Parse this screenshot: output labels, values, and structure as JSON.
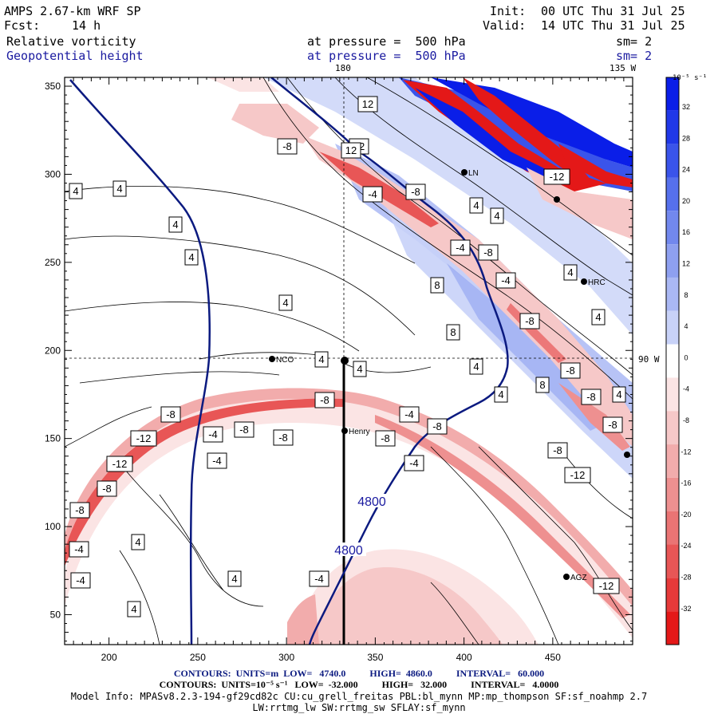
{
  "header": {
    "model_title": "AMPS 2.67-km WRF SP",
    "forecast_label": "Fcst:",
    "forecast_hours": "14 h",
    "init_label": "Init:",
    "init_time": "00 UTC Thu 31 Jul 25",
    "valid_label": "Valid:",
    "valid_time": "14 UTC Thu 31 Jul 25",
    "field1_name": "Relative vorticity",
    "field1_level": "at pressure =  500 hPa",
    "field1_smooth": "sm= 2",
    "field2_name": "Geopotential height",
    "field2_level": "at pressure =  500 hPa",
    "field2_smooth": "sm= 2"
  },
  "map_labels": {
    "lon_180": "180",
    "lon_135w": "135 W",
    "lon_90w": "90 W"
  },
  "axes": {
    "x_ticks": [
      "200",
      "250",
      "300",
      "350",
      "400",
      "450"
    ],
    "y_ticks": [
      "350",
      "300",
      "250",
      "200",
      "150",
      "100",
      "50"
    ]
  },
  "stations": [
    {
      "name": "LN"
    },
    {
      "name": "NCO"
    },
    {
      "name": "Henry"
    },
    {
      "name": "HRC"
    },
    {
      "name": "AGZ"
    }
  ],
  "height_contour_labels": [
    "4800",
    "4800"
  ],
  "vorticity_labels": [
    "4",
    "4",
    "4",
    "4",
    "4",
    "4",
    "4",
    "4",
    "4",
    "4",
    "4",
    "4",
    "4",
    "4",
    "4",
    "4",
    "4",
    "8",
    "8",
    "8",
    "12",
    "12",
    "12",
    "-4",
    "-4",
    "-4",
    "-4",
    "-4",
    "-4",
    "-4",
    "-4",
    "-4",
    "-4",
    "-8",
    "-8",
    "-8",
    "-8",
    "-8",
    "-8",
    "-8",
    "-8",
    "-8",
    "-8",
    "-8",
    "-8",
    "-8",
    "-8",
    "-12",
    "-12",
    "-12",
    "-12",
    "-12",
    "-8",
    "-8"
  ],
  "colorbar": {
    "units": "10⁻⁵ s⁻¹",
    "labels": [
      "32",
      "28",
      "24",
      "20",
      "16",
      "12",
      "8",
      "4",
      "0",
      "-4",
      "-8",
      "-12",
      "-16",
      "-20",
      "-24",
      "-28",
      "-32"
    ],
    "colors": [
      "#0a1ee8",
      "#2038e8",
      "#3a54ea",
      "#5670ec",
      "#7288ee",
      "#8ea0f0",
      "#aab8f4",
      "#c8d2f8",
      "#ffffff",
      "#fbe4e4",
      "#f6c8c8",
      "#f2acac",
      "#ee9090",
      "#ea7474",
      "#e85656",
      "#e63a3a",
      "#e41818"
    ]
  },
  "footer": {
    "line1": "CONTOURS:  UNITS=m  LOW=   4740.0          HIGH=  4860.0          INTERVAL=   60.000",
    "line2": "CONTOURS:  UNITS=10⁻⁵ s⁻¹   LOW=  -32.000          HIGH=   32.000          INTERVAL=   4.0000",
    "line3": "Model Info: MPASv8.2.3-194-gf29cd82c CU:cu_grell_freitas PBL:bl_mynn MP:mp_thompson SF:sf_noahmp 2.7",
    "line4": "LW:rrtmg_lw SW:rrtmg_sw SFLAY:sf_mynn"
  },
  "colors": {
    "height_contour": "#0b1a80",
    "header_blue": "#1a1aa0"
  }
}
